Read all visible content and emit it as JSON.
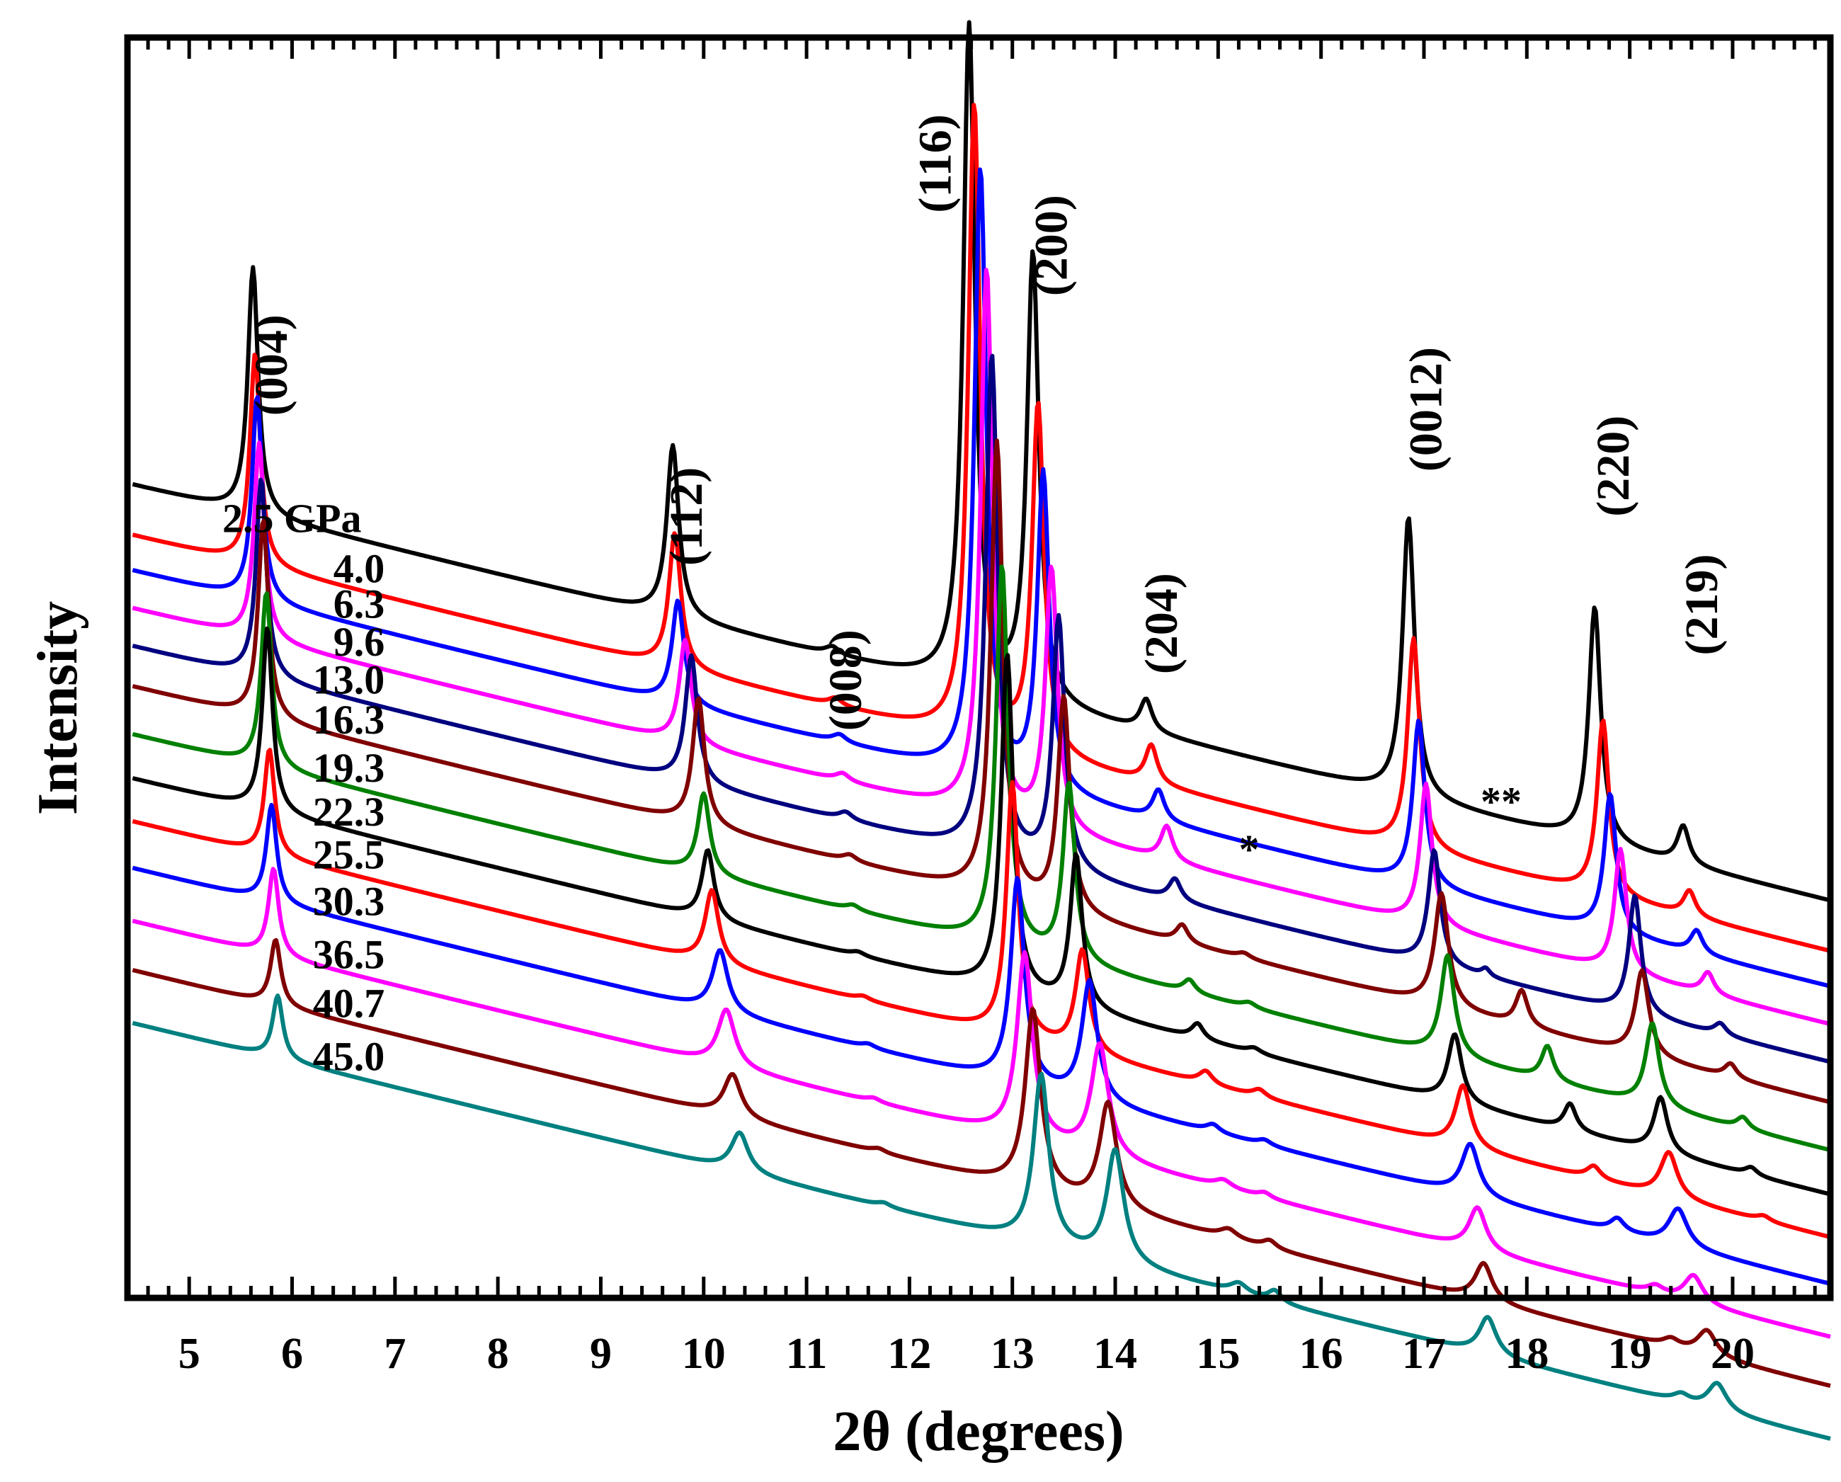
{
  "chart_data": {
    "type": "line",
    "title": "",
    "xlabel": "2θ (degrees)",
    "ylabel": "Intensity",
    "xlim": [
      4.4,
      20.95
    ],
    "xticks": [
      5,
      6,
      7,
      8,
      9,
      10,
      11,
      12,
      13,
      14,
      15,
      16,
      17,
      18,
      19,
      20
    ],
    "ylim": [
      0,
      1
    ],
    "grid": false,
    "legend": "inline labels beside each trace",
    "pressure_unit": "GPa",
    "series": [
      {
        "name": "2.5 GPa",
        "label": "2.5 GPa",
        "color": "#000000",
        "baseline": 0.484,
        "peaks": [
          [
            5.62,
            0.196,
            0.06
          ],
          [
            9.7,
            0.136,
            0.07
          ],
          [
            11.25,
            0.006,
            0.08
          ],
          [
            12.58,
            0.525,
            0.07
          ],
          [
            13.2,
            0.355,
            0.07
          ],
          [
            14.3,
            0.025,
            0.07
          ],
          [
            16.85,
            0.222,
            0.07
          ],
          [
            18.66,
            0.187,
            0.07
          ],
          [
            19.52,
            0.03,
            0.07
          ]
        ]
      },
      {
        "name": "4.0 GPa",
        "label": "4.0",
        "color": "#ff0000",
        "baseline": 0.444,
        "peaks": [
          [
            5.64,
            0.168,
            0.06
          ],
          [
            9.72,
            0.107,
            0.07
          ],
          [
            11.28,
            0.006,
            0.08
          ],
          [
            12.63,
            0.504,
            0.07
          ],
          [
            13.25,
            0.276,
            0.07
          ],
          [
            14.35,
            0.03,
            0.07
          ],
          [
            16.9,
            0.167,
            0.07
          ],
          [
            18.74,
            0.139,
            0.07
          ],
          [
            19.58,
            0.02,
            0.07
          ]
        ]
      },
      {
        "name": "6.3 GPa",
        "label": "6.3",
        "color": "#0000ff",
        "baseline": 0.416,
        "peaks": [
          [
            5.66,
            0.163,
            0.06
          ],
          [
            9.75,
            0.082,
            0.07
          ],
          [
            11.32,
            0.006,
            0.08
          ],
          [
            12.69,
            0.482,
            0.07
          ],
          [
            13.3,
            0.251,
            0.07
          ],
          [
            14.42,
            0.024,
            0.07
          ],
          [
            16.95,
            0.131,
            0.07
          ],
          [
            18.81,
            0.11,
            0.07
          ],
          [
            19.65,
            0.018,
            0.07
          ]
        ]
      },
      {
        "name": "9.6 GPa",
        "label": "9.6",
        "color": "#ff00ff",
        "baseline": 0.386,
        "peaks": [
          [
            5.68,
            0.156,
            0.06
          ],
          [
            9.82,
            0.082,
            0.07
          ],
          [
            11.35,
            0.006,
            0.08
          ],
          [
            12.75,
            0.434,
            0.07
          ],
          [
            13.38,
            0.207,
            0.07
          ],
          [
            14.5,
            0.027,
            0.07
          ],
          [
            17.02,
            0.112,
            0.07
          ],
          [
            18.91,
            0.098,
            0.07
          ],
          [
            19.76,
            0.017,
            0.07
          ]
        ]
      },
      {
        "name": "13.0 GPa",
        "label": "13.0",
        "color": "#000080",
        "baseline": 0.356,
        "peaks": [
          [
            5.7,
            0.158,
            0.06
          ],
          [
            9.88,
            0.101,
            0.07
          ],
          [
            11.38,
            0.006,
            0.08
          ],
          [
            12.8,
            0.397,
            0.07
          ],
          [
            13.45,
            0.2,
            0.07
          ],
          [
            14.58,
            0.017,
            0.07
          ],
          [
            17.1,
            0.091,
            0.07
          ],
          [
            17.6,
            0.006,
            0.05
          ],
          [
            19.05,
            0.094,
            0.07
          ],
          [
            19.88,
            0.009,
            0.07
          ]
        ]
      },
      {
        "name": "16.3 GPa",
        "label": "16.3",
        "color": "#800000",
        "baseline": 0.324,
        "peaks": [
          [
            5.72,
            0.158,
            0.06
          ],
          [
            9.95,
            0.101,
            0.07
          ],
          [
            11.42,
            0.005,
            0.08
          ],
          [
            12.85,
            0.361,
            0.07
          ],
          [
            13.5,
            0.17,
            0.07
          ],
          [
            14.65,
            0.014,
            0.07
          ],
          [
            15.25,
            0.004,
            0.08
          ],
          [
            17.17,
            0.09,
            0.08
          ],
          [
            17.95,
            0.028,
            0.07
          ],
          [
            19.12,
            0.068,
            0.08
          ],
          [
            19.98,
            0.011,
            0.07
          ]
        ]
      },
      {
        "name": "19.3 GPa",
        "label": "19.3",
        "color": "#008000",
        "baseline": 0.286,
        "peaks": [
          [
            5.75,
            0.139,
            0.06
          ],
          [
            10.0,
            0.064,
            0.07
          ],
          [
            11.45,
            0.004,
            0.08
          ],
          [
            12.9,
            0.302,
            0.07
          ],
          [
            13.55,
            0.141,
            0.07
          ],
          [
            14.72,
            0.01,
            0.07
          ],
          [
            15.3,
            0.004,
            0.08
          ],
          [
            17.23,
            0.08,
            0.08
          ],
          [
            18.2,
            0.027,
            0.07
          ],
          [
            19.22,
            0.066,
            0.08
          ],
          [
            20.1,
            0.009,
            0.07
          ]
        ]
      },
      {
        "name": "22.3 GPa",
        "label": "22.3",
        "color": "#000000",
        "baseline": 0.251,
        "peaks": [
          [
            5.76,
            0.146,
            0.06
          ],
          [
            10.04,
            0.055,
            0.07
          ],
          [
            11.5,
            0.003,
            0.08
          ],
          [
            12.95,
            0.268,
            0.07
          ],
          [
            13.62,
            0.121,
            0.07
          ],
          [
            14.8,
            0.012,
            0.07
          ],
          [
            15.35,
            0.004,
            0.08
          ],
          [
            17.3,
            0.054,
            0.08
          ],
          [
            18.42,
            0.021,
            0.07
          ],
          [
            19.3,
            0.044,
            0.08
          ],
          [
            20.18,
            0.006,
            0.07
          ]
        ]
      },
      {
        "name": "25.5 GPa",
        "label": "25.5",
        "color": "#ff0000",
        "baseline": 0.217,
        "peaks": [
          [
            5.78,
            0.084,
            0.06
          ],
          [
            10.08,
            0.058,
            0.08
          ],
          [
            11.55,
            0.003,
            0.08
          ],
          [
            13.0,
            0.201,
            0.07
          ],
          [
            13.68,
            0.081,
            0.08
          ],
          [
            14.88,
            0.01,
            0.08
          ],
          [
            15.4,
            0.006,
            0.08
          ],
          [
            17.38,
            0.049,
            0.09
          ],
          [
            18.65,
            0.01,
            0.08
          ],
          [
            19.38,
            0.036,
            0.1
          ],
          [
            20.3,
            0.004,
            0.08
          ]
        ]
      },
      {
        "name": "30.3 GPa",
        "label": "30.3",
        "color": "#0000ff",
        "baseline": 0.18,
        "peaks": [
          [
            5.8,
            0.077,
            0.06
          ],
          [
            10.16,
            0.049,
            0.09
          ],
          [
            11.6,
            0.003,
            0.08
          ],
          [
            13.05,
            0.163,
            0.08
          ],
          [
            13.75,
            0.095,
            0.09
          ],
          [
            14.95,
            0.006,
            0.08
          ],
          [
            15.45,
            0.004,
            0.08
          ],
          [
            17.45,
            0.041,
            0.1
          ],
          [
            18.88,
            0.01,
            0.08
          ],
          [
            19.47,
            0.03,
            0.11
          ]
        ]
      },
      {
        "name": "36.5 GPa",
        "label": "36.5",
        "color": "#ff00ff",
        "baseline": 0.138,
        "peaks": [
          [
            5.82,
            0.069,
            0.06
          ],
          [
            10.22,
            0.045,
            0.1
          ],
          [
            11.65,
            0.003,
            0.08
          ],
          [
            13.12,
            0.147,
            0.09
          ],
          [
            13.85,
            0.089,
            0.1
          ],
          [
            15.05,
            0.006,
            0.1
          ],
          [
            15.45,
            0.004,
            0.08
          ],
          [
            17.52,
            0.034,
            0.1
          ],
          [
            19.25,
            0.006,
            0.09
          ],
          [
            19.62,
            0.022,
            0.11
          ]
        ]
      },
      {
        "name": "40.7 GPa",
        "label": "40.7",
        "color": "#800000",
        "baseline": 0.099,
        "peaks": [
          [
            5.84,
            0.052,
            0.06
          ],
          [
            10.28,
            0.034,
            0.1
          ],
          [
            11.7,
            0.003,
            0.08
          ],
          [
            13.2,
            0.143,
            0.09
          ],
          [
            13.93,
            0.083,
            0.1
          ],
          [
            15.1,
            0.007,
            0.1
          ],
          [
            15.5,
            0.006,
            0.08
          ],
          [
            17.58,
            0.03,
            0.1
          ],
          [
            19.4,
            0.006,
            0.09
          ],
          [
            19.75,
            0.02,
            0.11
          ]
        ]
      },
      {
        "name": "45.0 GPa",
        "label": "45.0",
        "color": "#008080",
        "baseline": 0.057,
        "peaks": [
          [
            5.86,
            0.05,
            0.06
          ],
          [
            10.35,
            0.031,
            0.1
          ],
          [
            11.75,
            0.003,
            0.08
          ],
          [
            13.28,
            0.135,
            0.09
          ],
          [
            14.0,
            0.089,
            0.1
          ],
          [
            15.2,
            0.008,
            0.1
          ],
          [
            15.55,
            0.009,
            0.08
          ],
          [
            17.62,
            0.03,
            0.1
          ],
          [
            19.5,
            0.006,
            0.09
          ],
          [
            19.85,
            0.022,
            0.11
          ]
        ]
      }
    ],
    "annotations": [
      {
        "text": "(004)",
        "x": 5.95,
        "y": 0.74
      },
      {
        "text": "(112)",
        "x": 9.98,
        "y": 0.62
      },
      {
        "text": "(008)",
        "x": 11.53,
        "y": 0.49
      },
      {
        "text": "(116)",
        "x": 12.4,
        "y": 0.9
      },
      {
        "text": "(200)",
        "x": 13.53,
        "y": 0.835
      },
      {
        "text": "(204)",
        "x": 14.6,
        "y": 0.535
      },
      {
        "text": "(0012)",
        "x": 17.17,
        "y": 0.705
      },
      {
        "text": "(220)",
        "x": 18.99,
        "y": 0.66
      },
      {
        "text": "(219)",
        "x": 19.85,
        "y": 0.55
      }
    ],
    "markers": [
      {
        "text": "*",
        "x": 15.3,
        "y": 0.345
      },
      {
        "text": "**",
        "x": 17.75,
        "y": 0.383
      }
    ]
  }
}
